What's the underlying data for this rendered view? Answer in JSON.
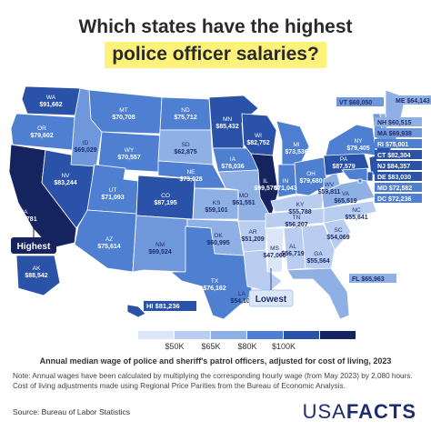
{
  "title_line1": "Which states have the highest",
  "title_line2": "police officer salaries?",
  "legend": {
    "ticks": [
      "$50K",
      "$65K",
      "$80K",
      "$100K"
    ],
    "colors": [
      "#dbe7f8",
      "#b8cdef",
      "#8fb0e4",
      "#4e7fd0",
      "#2a52a8",
      "#15245e"
    ]
  },
  "caption": "Annual median wage of police and sheriff's patrol officers, adjusted for cost of living, 2023",
  "note": "Note: Annual wages have been calculated by multiplying the corresponding hourly wage (from May 2023) by 2,080 hours. Cost of living adjustments made using Regional Price Parities from the Bureau of Economic Analysis.",
  "source": "Source: Bureau of Labor Statistics",
  "brand": {
    "part1": "USA",
    "part2": "FACTS"
  },
  "callouts": {
    "highest": "Highest",
    "lowest": "Lowest"
  },
  "states": [
    {
      "code": "WA",
      "value": "$91,662",
      "color": "#2a52a8"
    },
    {
      "code": "OR",
      "value": "$79,602",
      "color": "#4e7fd0"
    },
    {
      "code": "CA",
      "value": "$100,781",
      "color": "#15245e"
    },
    {
      "code": "NV",
      "value": "$83,244",
      "color": "#2a52a8"
    },
    {
      "code": "ID",
      "value": "$69,029",
      "color": "#6f98dc"
    },
    {
      "code": "MT",
      "value": "$70,708",
      "color": "#4e7fd0"
    },
    {
      "code": "WY",
      "value": "$70,557",
      "color": "#4e7fd0"
    },
    {
      "code": "UT",
      "value": "$71,093",
      "color": "#4e7fd0"
    },
    {
      "code": "AZ",
      "value": "$75,614",
      "color": "#4e7fd0"
    },
    {
      "code": "CO",
      "value": "$87,195",
      "color": "#2a52a8"
    },
    {
      "code": "NM",
      "value": "$69,524",
      "color": "#6f98dc"
    },
    {
      "code": "ND",
      "value": "$75,712",
      "color": "#4e7fd0"
    },
    {
      "code": "SD",
      "value": "$62,875",
      "color": "#8fb0e4"
    },
    {
      "code": "NE",
      "value": "$73,028",
      "color": "#4e7fd0"
    },
    {
      "code": "KS",
      "value": "$59,101",
      "color": "#8fb0e4"
    },
    {
      "code": "OK",
      "value": "$60,995",
      "color": "#8fb0e4"
    },
    {
      "code": "TX",
      "value": "$76,162",
      "color": "#4e7fd0"
    },
    {
      "code": "MN",
      "value": "$85,432",
      "color": "#2a52a8"
    },
    {
      "code": "IA",
      "value": "$78,036",
      "color": "#4e7fd0"
    },
    {
      "code": "MO",
      "value": "$61,551",
      "color": "#8fb0e4"
    },
    {
      "code": "AR",
      "value": "$51,209",
      "color": "#b8cdef"
    },
    {
      "code": "LA",
      "value": "$54,106",
      "color": "#b8cdef"
    },
    {
      "code": "WI",
      "value": "$82,752",
      "color": "#2a52a8"
    },
    {
      "code": "IL",
      "value": "$99,570",
      "color": "#15245e"
    },
    {
      "code": "MI",
      "value": "$73,536",
      "color": "#4e7fd0"
    },
    {
      "code": "IN",
      "value": "$71,043",
      "color": "#4e7fd0"
    },
    {
      "code": "OH",
      "value": "$79,680",
      "color": "#4e7fd0"
    },
    {
      "code": "KY",
      "value": "$55,788",
      "color": "#b8cdef"
    },
    {
      "code": "TN",
      "value": "$56,207",
      "color": "#b8cdef"
    },
    {
      "code": "MS",
      "value": "$47,060",
      "color": "#dbe7f8"
    },
    {
      "code": "AL",
      "value": "$56,719",
      "color": "#b8cdef"
    },
    {
      "code": "GA",
      "value": "$55,564",
      "color": "#b8cdef"
    },
    {
      "code": "FL",
      "value": "$65,963",
      "color": "#8fb0e4"
    },
    {
      "code": "SC",
      "value": "$54,069",
      "color": "#b8cdef"
    },
    {
      "code": "NC",
      "value": "$55,641",
      "color": "#b8cdef"
    },
    {
      "code": "VA",
      "value": "$65,519",
      "color": "#8fb0e4"
    },
    {
      "code": "WV",
      "value": "$59,811",
      "color": "#8fb0e4"
    },
    {
      "code": "PA",
      "value": "$87,579",
      "color": "#2a52a8"
    },
    {
      "code": "NY",
      "value": "$79,405",
      "color": "#4e7fd0"
    },
    {
      "code": "VT",
      "value": "$68,050",
      "color": "#6f98dc"
    },
    {
      "code": "ME",
      "value": "$64,143",
      "color": "#8fb0e4"
    },
    {
      "code": "NH",
      "value": "$60,515",
      "color": "#8fb0e4"
    },
    {
      "code": "MA",
      "value": "$69,938",
      "color": "#6f98dc"
    },
    {
      "code": "RI",
      "value": "$75,001",
      "color": "#4e7fd0"
    },
    {
      "code": "CT",
      "value": "$82,304",
      "color": "#2a52a8"
    },
    {
      "code": "NJ",
      "value": "$84,357",
      "color": "#2a52a8"
    },
    {
      "code": "DE",
      "value": "$83,030",
      "color": "#2a52a8"
    },
    {
      "code": "MD",
      "value": "$72,582",
      "color": "#4e7fd0"
    },
    {
      "code": "DC",
      "value": "$72,236",
      "color": "#4e7fd0"
    },
    {
      "code": "AK",
      "value": "$88,542",
      "color": "#2a52a8"
    },
    {
      "code": "HI",
      "value": "$81,236",
      "color": "#2a52a8"
    }
  ]
}
